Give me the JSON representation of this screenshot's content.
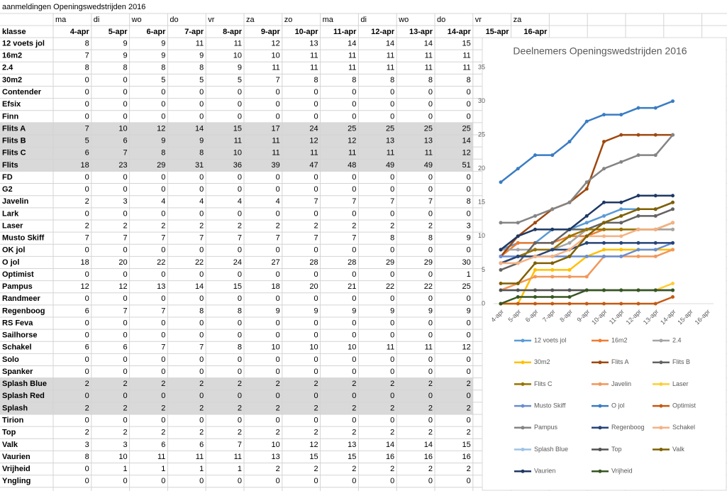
{
  "sheet": {
    "title": "aanmeldingen Openingswedstrijden 2016",
    "days": [
      "ma",
      "di",
      "wo",
      "do",
      "vr",
      "za",
      "zo",
      "ma",
      "di",
      "wo",
      "do",
      "vr",
      "za"
    ],
    "header": "klasse",
    "dates": [
      "4-apr",
      "5-apr",
      "6-apr",
      "7-apr",
      "8-apr",
      "9-apr",
      "10-apr",
      "11-apr",
      "12-apr",
      "13-apr",
      "14-apr",
      "15-apr",
      "16-apr"
    ],
    "rows": [
      {
        "name": "12 voets jol",
        "values": [
          8,
          9,
          9,
          11,
          11,
          12,
          13,
          14,
          14,
          14,
          15
        ]
      },
      {
        "name": "16m2",
        "values": [
          7,
          9,
          9,
          9,
          10,
          10,
          11,
          11,
          11,
          11,
          11
        ]
      },
      {
        "name": "2.4",
        "values": [
          8,
          8,
          8,
          8,
          9,
          11,
          11,
          11,
          11,
          11,
          11
        ]
      },
      {
        "name": "30m2",
        "values": [
          0,
          0,
          5,
          5,
          5,
          7,
          8,
          8,
          8,
          8,
          8
        ]
      },
      {
        "name": "Contender",
        "values": [
          0,
          0,
          0,
          0,
          0,
          0,
          0,
          0,
          0,
          0,
          0
        ]
      },
      {
        "name": "Efsix",
        "values": [
          0,
          0,
          0,
          0,
          0,
          0,
          0,
          0,
          0,
          0,
          0
        ]
      },
      {
        "name": "Finn",
        "values": [
          0,
          0,
          0,
          0,
          0,
          0,
          0,
          0,
          0,
          0,
          0
        ]
      },
      {
        "name": "Flits A",
        "values": [
          7,
          10,
          12,
          14,
          15,
          17,
          24,
          25,
          25,
          25,
          25
        ],
        "shaded": true
      },
      {
        "name": "Flits B",
        "values": [
          5,
          6,
          9,
          9,
          11,
          11,
          12,
          12,
          13,
          13,
          14
        ],
        "shaded": true
      },
      {
        "name": "Flits C",
        "values": [
          6,
          7,
          8,
          8,
          10,
          11,
          11,
          11,
          11,
          11,
          12
        ],
        "shaded": true
      },
      {
        "name": "Flits",
        "values": [
          18,
          23,
          29,
          31,
          36,
          39,
          47,
          48,
          49,
          49,
          51
        ],
        "shaded": true
      },
      {
        "name": "FD",
        "values": [
          0,
          0,
          0,
          0,
          0,
          0,
          0,
          0,
          0,
          0,
          0
        ]
      },
      {
        "name": "G2",
        "values": [
          0,
          0,
          0,
          0,
          0,
          0,
          0,
          0,
          0,
          0,
          0
        ]
      },
      {
        "name": "Javelin",
        "values": [
          2,
          3,
          4,
          4,
          4,
          4,
          7,
          7,
          7,
          7,
          8
        ]
      },
      {
        "name": "Lark",
        "values": [
          0,
          0,
          0,
          0,
          0,
          0,
          0,
          0,
          0,
          0,
          0
        ]
      },
      {
        "name": "Laser",
        "values": [
          2,
          2,
          2,
          2,
          2,
          2,
          2,
          2,
          2,
          2,
          3
        ]
      },
      {
        "name": "Musto Skiff",
        "values": [
          7,
          7,
          7,
          7,
          7,
          7,
          7,
          7,
          8,
          8,
          9
        ]
      },
      {
        "name": "OK jol",
        "values": [
          0,
          0,
          0,
          0,
          0,
          0,
          0,
          0,
          0,
          0,
          0
        ]
      },
      {
        "name": "O jol",
        "values": [
          18,
          20,
          22,
          22,
          24,
          27,
          28,
          28,
          29,
          29,
          30
        ]
      },
      {
        "name": "Optimist",
        "values": [
          0,
          0,
          0,
          0,
          0,
          0,
          0,
          0,
          0,
          0,
          1
        ]
      },
      {
        "name": "Pampus",
        "values": [
          12,
          12,
          13,
          14,
          15,
          18,
          20,
          21,
          22,
          22,
          25
        ]
      },
      {
        "name": "Randmeer",
        "values": [
          0,
          0,
          0,
          0,
          0,
          0,
          0,
          0,
          0,
          0,
          0
        ]
      },
      {
        "name": "Regenboog",
        "values": [
          6,
          7,
          7,
          8,
          8,
          9,
          9,
          9,
          9,
          9,
          9
        ]
      },
      {
        "name": "RS Feva",
        "values": [
          0,
          0,
          0,
          0,
          0,
          0,
          0,
          0,
          0,
          0,
          0
        ]
      },
      {
        "name": "Sailhorse",
        "values": [
          0,
          0,
          0,
          0,
          0,
          0,
          0,
          0,
          0,
          0,
          0
        ]
      },
      {
        "name": "Schakel",
        "values": [
          6,
          6,
          7,
          7,
          8,
          10,
          10,
          10,
          11,
          11,
          12
        ]
      },
      {
        "name": "Solo",
        "values": [
          0,
          0,
          0,
          0,
          0,
          0,
          0,
          0,
          0,
          0,
          0
        ]
      },
      {
        "name": "Spanker",
        "values": [
          0,
          0,
          0,
          0,
          0,
          0,
          0,
          0,
          0,
          0,
          0
        ]
      },
      {
        "name": "Splash Blue",
        "values": [
          2,
          2,
          2,
          2,
          2,
          2,
          2,
          2,
          2,
          2,
          2
        ],
        "shaded": true
      },
      {
        "name": "Splash Red",
        "values": [
          0,
          0,
          0,
          0,
          0,
          0,
          0,
          0,
          0,
          0,
          0
        ],
        "shaded": true
      },
      {
        "name": "Splash",
        "values": [
          2,
          2,
          2,
          2,
          2,
          2,
          2,
          2,
          2,
          2,
          2
        ],
        "shaded": true
      },
      {
        "name": "Tirion",
        "values": [
          0,
          0,
          0,
          0,
          0,
          0,
          0,
          0,
          0,
          0,
          0
        ]
      },
      {
        "name": "Top",
        "values": [
          2,
          2,
          2,
          2,
          2,
          2,
          2,
          2,
          2,
          2,
          2
        ]
      },
      {
        "name": "Valk",
        "values": [
          3,
          3,
          6,
          6,
          7,
          10,
          12,
          13,
          14,
          14,
          15
        ]
      },
      {
        "name": "Vaurien",
        "values": [
          8,
          10,
          11,
          11,
          11,
          13,
          15,
          15,
          16,
          16,
          16
        ]
      },
      {
        "name": "Vrijheid",
        "values": [
          0,
          1,
          1,
          1,
          1,
          2,
          2,
          2,
          2,
          2,
          2
        ]
      },
      {
        "name": "Yngling",
        "values": [
          0,
          0,
          0,
          0,
          0,
          0,
          0,
          0,
          0,
          0,
          0
        ]
      }
    ]
  },
  "chart_data": {
    "type": "line",
    "title": "Deelnemers Openingswedstrijden 2016",
    "categories": [
      "4-apr",
      "5-apr",
      "6-apr",
      "7-apr",
      "8-apr",
      "9-apr",
      "10-apr",
      "11-apr",
      "12-apr",
      "13-apr",
      "14-apr",
      "15-apr",
      "16-apr"
    ],
    "ylim": [
      0,
      35
    ],
    "yticks": [
      0,
      5,
      10,
      15,
      20,
      25,
      30,
      35
    ],
    "grid": false,
    "series": [
      {
        "name": "12 voets jol",
        "color": "#5b9bd5",
        "values": [
          8,
          9,
          9,
          11,
          11,
          12,
          13,
          14,
          14,
          14,
          15,
          null,
          null
        ]
      },
      {
        "name": "16m2",
        "color": "#ed7d31",
        "values": [
          7,
          9,
          9,
          9,
          10,
          10,
          11,
          11,
          11,
          11,
          11,
          null,
          null
        ]
      },
      {
        "name": "2.4",
        "color": "#a5a5a5",
        "values": [
          8,
          8,
          8,
          8,
          9,
          11,
          11,
          11,
          11,
          11,
          11,
          null,
          null
        ]
      },
      {
        "name": "30m2",
        "color": "#ffc000",
        "values": [
          0,
          0,
          5,
          5,
          5,
          7,
          8,
          8,
          8,
          8,
          8,
          null,
          null
        ]
      },
      {
        "name": "Flits A",
        "color": "#9e480e",
        "values": [
          7,
          10,
          12,
          14,
          15,
          17,
          24,
          25,
          25,
          25,
          25,
          null,
          null
        ]
      },
      {
        "name": "Flits B",
        "color": "#636363",
        "values": [
          5,
          6,
          9,
          9,
          11,
          11,
          12,
          12,
          13,
          13,
          14,
          null,
          null
        ]
      },
      {
        "name": "Flits C",
        "color": "#997300",
        "values": [
          6,
          7,
          8,
          8,
          10,
          11,
          11,
          11,
          11,
          11,
          12,
          null,
          null
        ]
      },
      {
        "name": "Javelin",
        "color": "#f1975a",
        "values": [
          2,
          3,
          4,
          4,
          4,
          4,
          7,
          7,
          7,
          7,
          8,
          null,
          null
        ]
      },
      {
        "name": "Laser",
        "color": "#ffcd33",
        "values": [
          2,
          2,
          2,
          2,
          2,
          2,
          2,
          2,
          2,
          2,
          3,
          null,
          null
        ]
      },
      {
        "name": "Musto Skiff",
        "color": "#698ed0",
        "values": [
          7,
          7,
          7,
          7,
          7,
          7,
          7,
          7,
          8,
          8,
          9,
          null,
          null
        ]
      },
      {
        "name": "O jol",
        "color": "#3a7cc4",
        "values": [
          18,
          20,
          22,
          22,
          24,
          27,
          28,
          28,
          29,
          29,
          30,
          null,
          null
        ]
      },
      {
        "name": "Optimist",
        "color": "#c55a11",
        "values": [
          0,
          0,
          0,
          0,
          0,
          0,
          0,
          0,
          0,
          0,
          1,
          null,
          null
        ]
      },
      {
        "name": "Pampus",
        "color": "#848484",
        "values": [
          12,
          12,
          13,
          14,
          15,
          18,
          20,
          21,
          22,
          22,
          25,
          null,
          null
        ]
      },
      {
        "name": "Regenboog",
        "color": "#264478",
        "values": [
          6,
          7,
          7,
          8,
          8,
          9,
          9,
          9,
          9,
          9,
          9,
          null,
          null
        ]
      },
      {
        "name": "Schakel",
        "color": "#f4b183",
        "values": [
          6,
          6,
          7,
          7,
          8,
          10,
          10,
          10,
          11,
          11,
          12,
          null,
          null
        ]
      },
      {
        "name": "Splash Blue",
        "color": "#9dc3e6",
        "values": [
          2,
          2,
          2,
          2,
          2,
          2,
          2,
          2,
          2,
          2,
          2,
          null,
          null
        ]
      },
      {
        "name": "Top",
        "color": "#525252",
        "values": [
          2,
          2,
          2,
          2,
          2,
          2,
          2,
          2,
          2,
          2,
          2,
          null,
          null
        ]
      },
      {
        "name": "Valk",
        "color": "#7f6000",
        "values": [
          3,
          3,
          6,
          6,
          7,
          10,
          12,
          13,
          14,
          14,
          15,
          null,
          null
        ]
      },
      {
        "name": "Vaurien",
        "color": "#1f3864",
        "values": [
          8,
          10,
          11,
          11,
          11,
          13,
          15,
          15,
          16,
          16,
          16,
          null,
          null
        ]
      },
      {
        "name": "Vrijheid",
        "color": "#375623",
        "values": [
          0,
          1,
          1,
          1,
          1,
          2,
          2,
          2,
          2,
          2,
          2,
          null,
          null
        ]
      }
    ]
  }
}
